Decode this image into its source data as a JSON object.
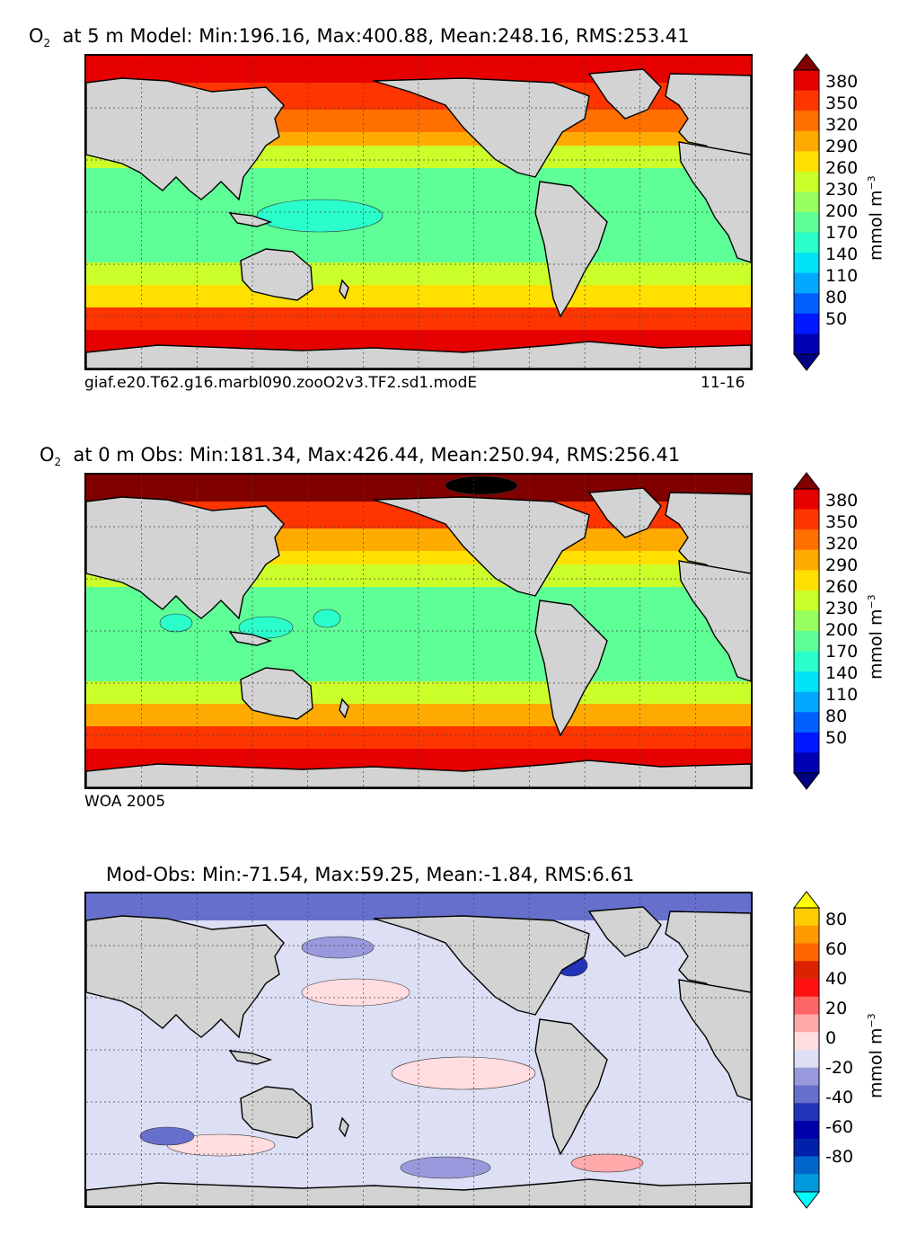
{
  "panels": [
    {
      "title_prefix": "O",
      "title_sub": "2",
      "title_rest": "at 5 m Model: Min:196.16, Max:400.88, Mean:248.16, RMS:253.41",
      "caption_left": "giaf.e20.T62.g16.marbl090.zooO2v3.TF2.sd1.modE",
      "caption_right": "11-16",
      "colorbar": {
        "ticks": [
          "380",
          "350",
          "320",
          "290",
          "260",
          "230",
          "200",
          "170",
          "140",
          "110",
          "80",
          "50"
        ],
        "unit": "mmol m",
        "unit_exp": "−3",
        "colors": [
          "#000080",
          "#0000b3",
          "#0018ff",
          "#0060ff",
          "#00a8ff",
          "#00e4f8",
          "#2affcc",
          "#5fff97",
          "#97ff5f",
          "#cbff2a",
          "#ffe000",
          "#ffaa00",
          "#ff7000",
          "#ff3500",
          "#e60000",
          "#800000"
        ]
      }
    },
    {
      "title_prefix": "O",
      "title_sub": "2",
      "title_rest": "at 0 m Obs: Min:181.34, Max:426.44, Mean:250.94, RMS:256.41",
      "caption_left": "WOA 2005",
      "caption_right": "",
      "colorbar": {
        "ticks": [
          "380",
          "350",
          "320",
          "290",
          "260",
          "230",
          "200",
          "170",
          "140",
          "110",
          "80",
          "50"
        ],
        "unit": "mmol m",
        "unit_exp": "−3",
        "colors": [
          "#000080",
          "#0000b3",
          "#0018ff",
          "#0060ff",
          "#00a8ff",
          "#00e4f8",
          "#2affcc",
          "#5fff97",
          "#97ff5f",
          "#cbff2a",
          "#ffe000",
          "#ffaa00",
          "#ff7000",
          "#ff3500",
          "#e60000",
          "#800000"
        ]
      }
    },
    {
      "title_prefix": "",
      "title_sub": "",
      "title_rest": "Mod-Obs: Min:-71.54, Max:59.25, Mean:-1.84, RMS:6.61",
      "caption_left": "",
      "caption_right": "",
      "colorbar": {
        "ticks": [
          "80",
          "60",
          "40",
          "20",
          "0",
          "-20",
          "-40",
          "-60",
          "-80"
        ],
        "unit": "mmol m",
        "unit_exp": "−3",
        "colors": [
          "#00ffff",
          "#0099dd",
          "#0066cc",
          "#0022aa",
          "#0000aa",
          "#2233bb",
          "#6670cc",
          "#9999dd",
          "#dde0f5",
          "#ffdde0",
          "#ffaaaa",
          "#ff6666",
          "#ff1111",
          "#dd2200",
          "#ff6600",
          "#ff9900",
          "#ffcc00",
          "#ffff00"
        ]
      }
    }
  ],
  "map_colors": {
    "land": "#d3d3d3",
    "model": {
      "arctic": "#e60000",
      "high_lat": "#ff3500",
      "mid_lat": "#ff7000",
      "subpolar": "#ffaa00",
      "subtrop": "#cbff2a",
      "tropics": "#5fff97",
      "warm_pool": "#2affcc",
      "south_mid": "#ffe000",
      "south_high": "#ff3500",
      "southern": "#e60000"
    },
    "obs": {
      "arctic": "#800000",
      "high_lat": "#ff3500",
      "mid_lat": "#ffaa00",
      "subpolar": "#ffe000",
      "subtrop": "#cbff2a",
      "tropics": "#5fff97",
      "warm_pool": "#2affcc",
      "south_mid": "#ffaa00",
      "south_high": "#ff3500",
      "southern": "#e60000"
    },
    "diff": {
      "base": "#dde0f5",
      "neg1": "#9999dd",
      "neg2": "#6670cc",
      "neg3": "#2233bb",
      "pos1": "#ffdde0",
      "pos2": "#ffaaaa",
      "pos3": "#ff6666"
    }
  }
}
